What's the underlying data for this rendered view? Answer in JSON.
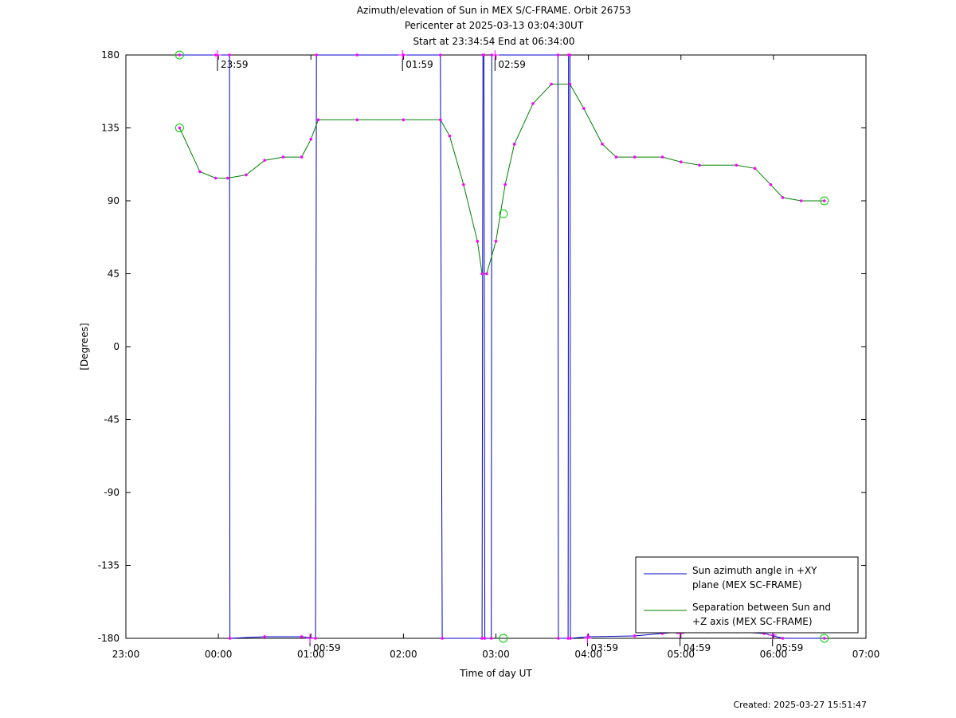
{
  "header": {
    "title_line1": "Azimuth/elevation of Sun in MEX S/C-FRAME.  Orbit 26753",
    "title_line2": "Pericenter at 2025-03-13 03:04:30UT",
    "title_line3": "Start at 23:34:54 End at 06:34:00"
  },
  "footer": {
    "created": "Created: 2025-03-27 15:51:47"
  },
  "chart_data": {
    "type": "line",
    "title": "Azimuth/elevation of Sun in MEX S/C-FRAME.  Orbit 26753",
    "subtitle": [
      "Pericenter at 2025-03-13 03:04:30UT",
      "Start at 23:34:54 End at 06:34:00"
    ],
    "xlabel": "Time of day UT",
    "ylabel": "[Degrees]",
    "x_unit": "hours since 23:00",
    "xlim": [
      0,
      8
    ],
    "ylim": [
      -180,
      180
    ],
    "x_tick_labels": [
      "23:00",
      "00:00",
      "01:00",
      "02:00",
      "03:00",
      "04:00",
      "05:00",
      "06:00",
      "07:00"
    ],
    "y_ticks": [
      180,
      135,
      90,
      45,
      0,
      -45,
      -90,
      -135,
      -180
    ],
    "legend_position": "bottom-right",
    "series": [
      {
        "name": "Sun azimuth angle in +XY plane (MEX SC-FRAME)",
        "color": "#0000cc",
        "points": [
          [
            0.58,
            180
          ],
          [
            0.97,
            180
          ],
          [
            1.12,
            180
          ],
          [
            1.125,
            -180
          ],
          [
            1.5,
            -179
          ],
          [
            1.9,
            -179
          ],
          [
            2.05,
            -180
          ],
          [
            2.06,
            180
          ],
          [
            2.5,
            180
          ],
          [
            3.0,
            180
          ],
          [
            3.4,
            180
          ],
          [
            3.42,
            -180
          ],
          [
            3.85,
            -180
          ],
          [
            3.86,
            180
          ],
          [
            3.87,
            180
          ],
          [
            3.88,
            -180
          ],
          [
            3.95,
            -180
          ],
          [
            3.955,
            180
          ],
          [
            4.67,
            180
          ],
          [
            4.675,
            -180
          ],
          [
            4.78,
            -180
          ],
          [
            4.785,
            180
          ],
          [
            4.8,
            180
          ],
          [
            4.805,
            -180
          ],
          [
            5.0,
            -179
          ],
          [
            5.5,
            -178.5
          ],
          [
            5.8,
            -177
          ],
          [
            6.0,
            -176
          ],
          [
            6.3,
            -176
          ],
          [
            6.6,
            -176
          ],
          [
            6.9,
            -177
          ],
          [
            7.1,
            -180
          ],
          [
            7.55,
            -180
          ]
        ]
      },
      {
        "name": "Separation between Sun and +Z axis (MEX SC-FRAME)",
        "color": "#008000",
        "points": [
          [
            0.58,
            135
          ],
          [
            0.8,
            108
          ],
          [
            0.97,
            104
          ],
          [
            1.1,
            104
          ],
          [
            1.3,
            106
          ],
          [
            1.5,
            115
          ],
          [
            1.7,
            117
          ],
          [
            1.9,
            117
          ],
          [
            2.0,
            128
          ],
          [
            2.08,
            140
          ],
          [
            2.5,
            140
          ],
          [
            3.0,
            140
          ],
          [
            3.4,
            140
          ],
          [
            3.5,
            130
          ],
          [
            3.65,
            100
          ],
          [
            3.8,
            65
          ],
          [
            3.85,
            45
          ],
          [
            3.9,
            45
          ],
          [
            4.0,
            65
          ],
          [
            4.1,
            100
          ],
          [
            4.2,
            125
          ],
          [
            4.4,
            150
          ],
          [
            4.6,
            162
          ],
          [
            4.8,
            162
          ],
          [
            4.95,
            147
          ],
          [
            5.15,
            125
          ],
          [
            5.3,
            117
          ],
          [
            5.5,
            117
          ],
          [
            5.8,
            117
          ],
          [
            6.0,
            114
          ],
          [
            6.2,
            112
          ],
          [
            6.6,
            112
          ],
          [
            6.8,
            110
          ],
          [
            6.97,
            100
          ],
          [
            7.1,
            92
          ],
          [
            7.3,
            90
          ],
          [
            7.55,
            90
          ]
        ]
      }
    ],
    "marker_times": [
      "23:59",
      "00:59",
      "01:59",
      "02:59",
      "03:59",
      "04:59",
      "05:59"
    ]
  }
}
